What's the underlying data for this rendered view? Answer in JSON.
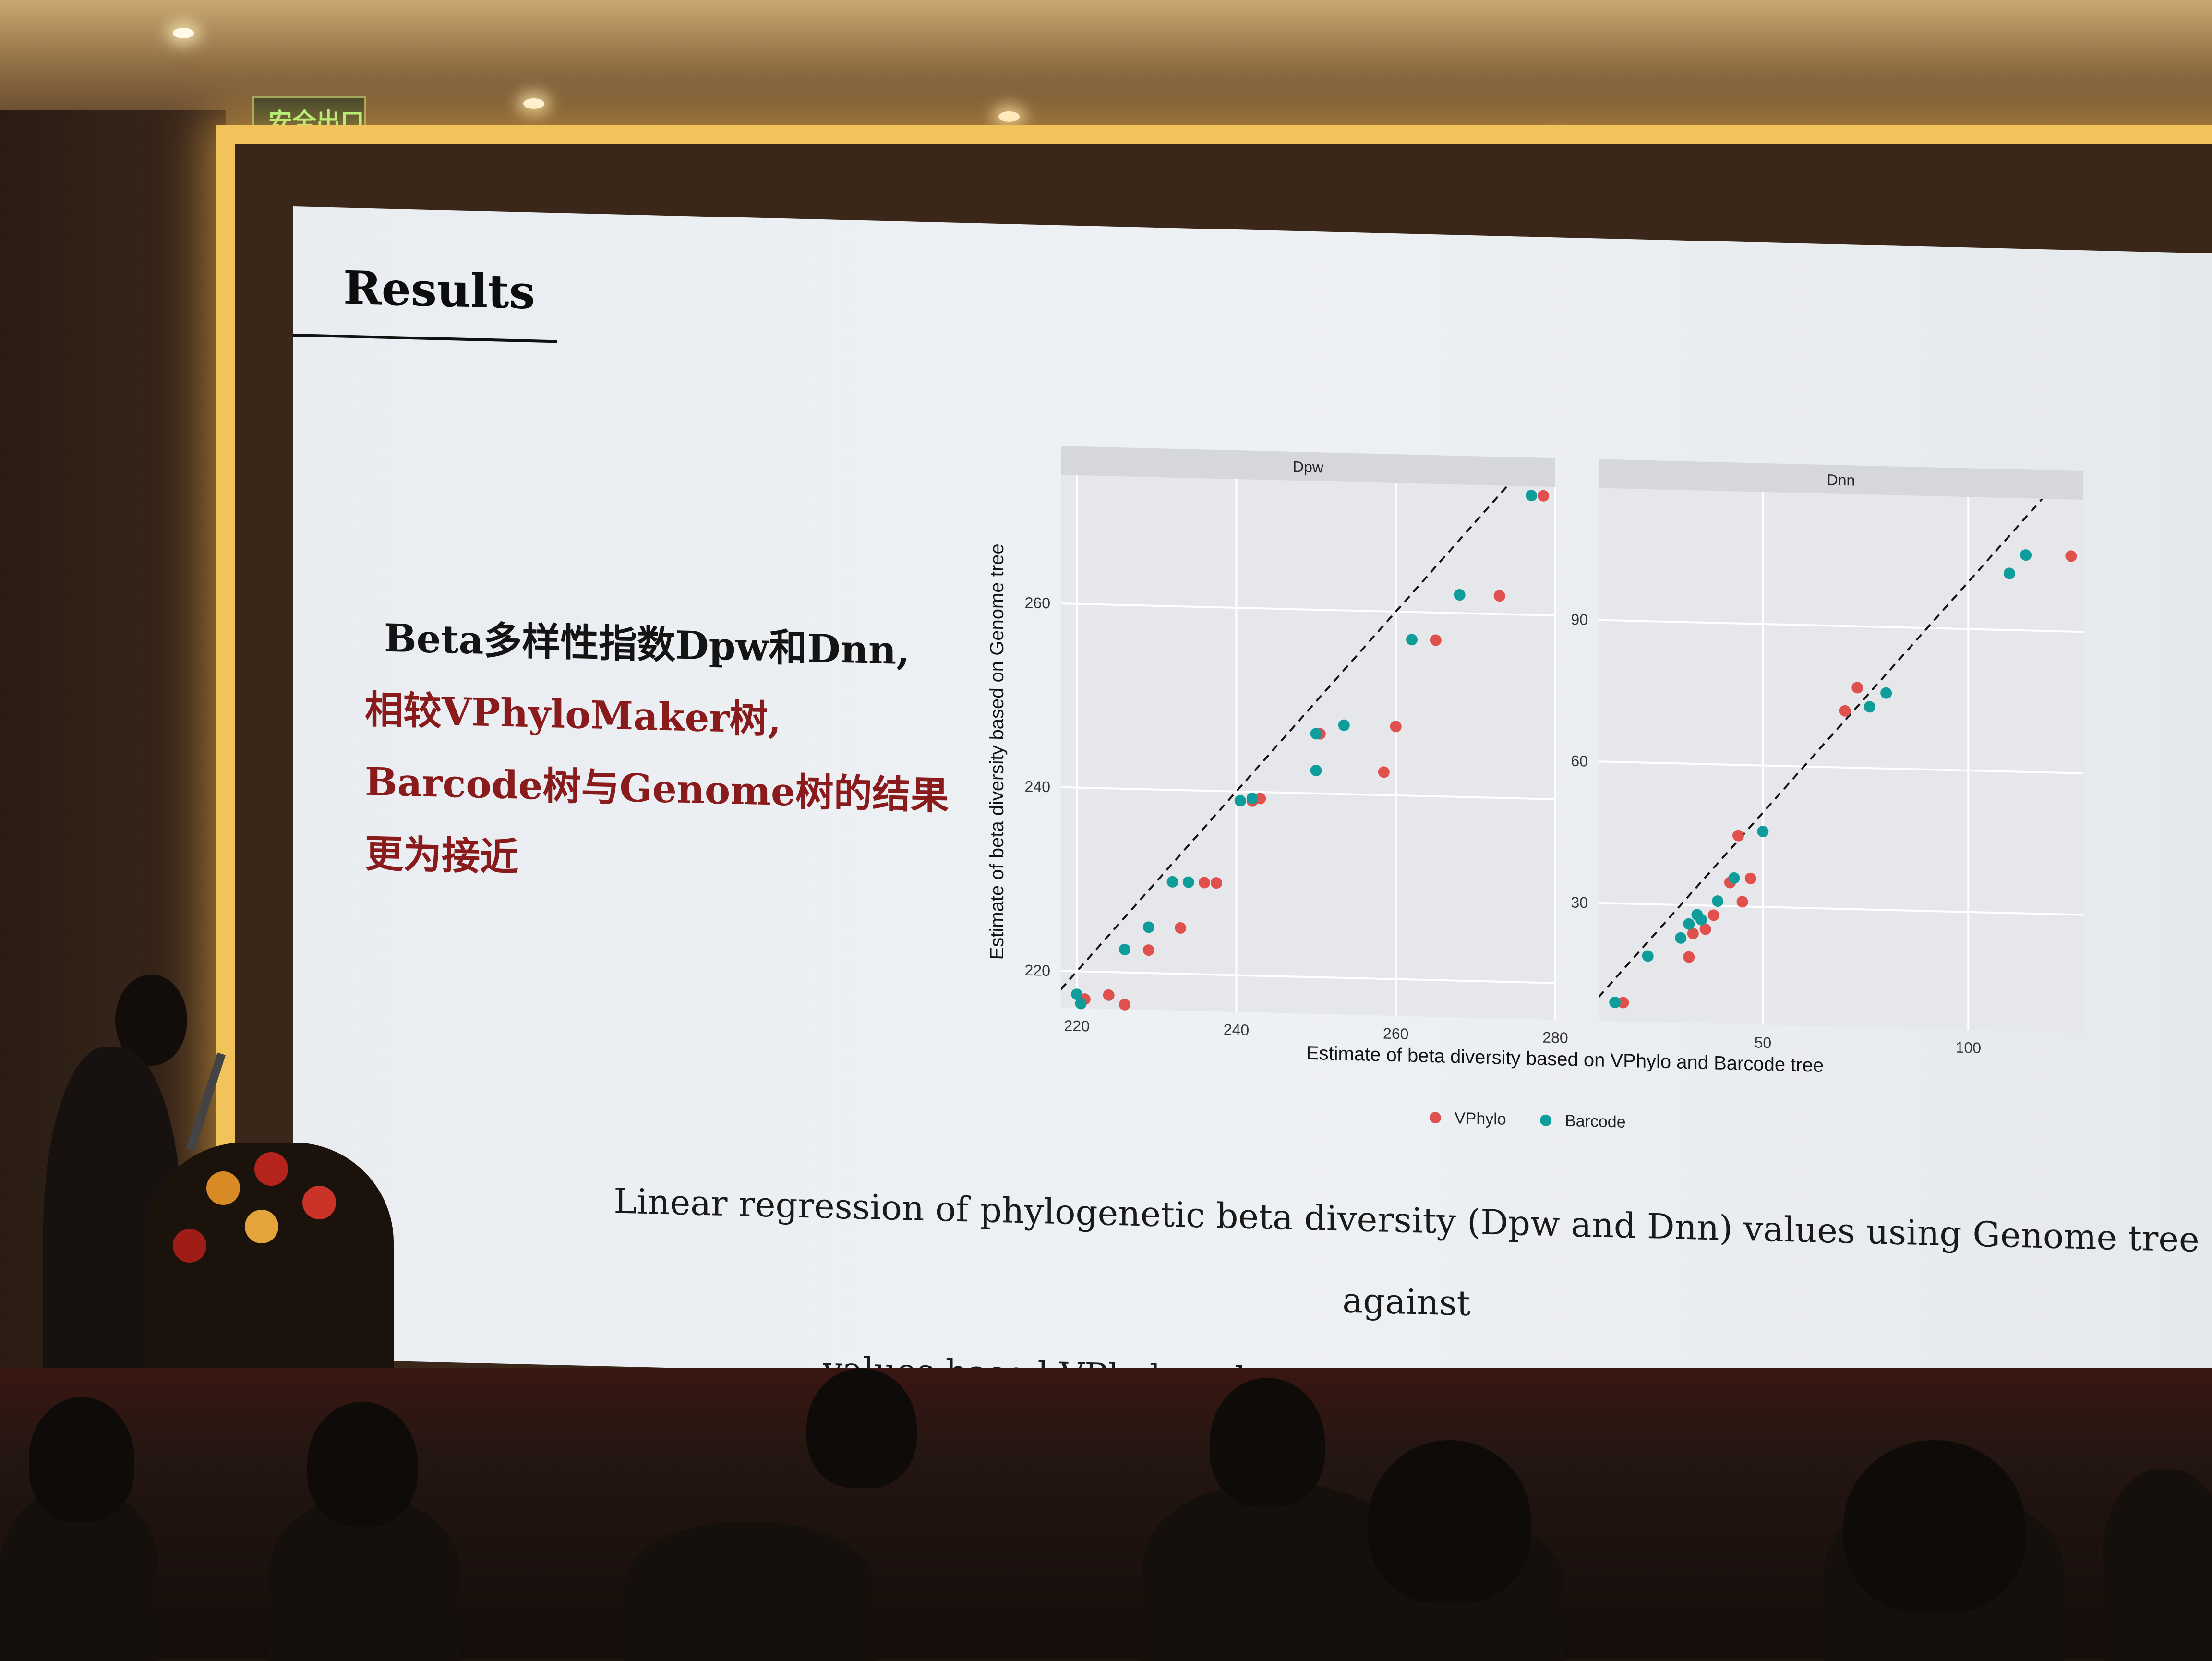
{
  "slide": {
    "title": "Results",
    "chinese_lines": [
      "Beta多样性指数Dpw和Dnn,",
      "相较VPhyloMaker树,",
      "Barcode树与Genome树的结果",
      "更为接近"
    ],
    "caption_lines": [
      "Linear regression of phylogenetic beta diversity (Dpw and Dnn) values using Genome tree against",
      "values based VPhylomaker tree (orange) and Barcode tree (green)"
    ]
  },
  "exit_sign": "安全出口",
  "chart_data": {
    "type": "scatter",
    "xlabel": "Estimate of beta diversity based on VPhylo and Barcode tree",
    "ylabel": "Estimate of beta diversity based on Genome tree",
    "legend": {
      "placement": "bottom",
      "entries": [
        "VPhylo",
        "Barcode"
      ]
    },
    "colors": {
      "VPhylo": "#e0514d",
      "Barcode": "#0e9d9a",
      "panel_bg": "#e6e7eb",
      "strip_bg": "#d6d7da"
    },
    "grid": true,
    "panels": [
      {
        "title": "Dpw",
        "xlim": [
          218,
          280
        ],
        "ylim": [
          216,
          274
        ],
        "xticks": [
          220,
          240,
          260,
          280
        ],
        "yticks": [
          220,
          240,
          260
        ],
        "reference_line": "y = x",
        "series": [
          {
            "name": "VPhylo",
            "x": [
              221,
              224,
              226,
              229,
              233,
              236,
              237.5,
              242,
              243,
              250.5,
              258.5,
              260,
              265,
              273,
              278.5
            ],
            "y": [
              217,
              217.5,
              216.5,
              222.5,
              225,
              230,
              230,
              239,
              239.3,
              246.5,
              242.5,
              247.5,
              257,
              262,
              273
            ]
          },
          {
            "name": "Barcode",
            "x": [
              220,
              220.5,
              226,
              229,
              232,
              234,
              240.5,
              242,
              250,
              250,
              253.5,
              262,
              268,
              277
            ],
            "y": [
              217.5,
              216.5,
              222.5,
              225,
              230,
              230,
              239,
              239.3,
              246.5,
              242.5,
              247.5,
              257,
              262,
              273
            ]
          }
        ]
      },
      {
        "title": "Dnn",
        "xlim": [
          10,
          128
        ],
        "ylim": [
          5,
          118
        ],
        "xticks": [
          50,
          100
        ],
        "yticks": [
          30,
          60,
          90
        ],
        "reference_line": "y = x",
        "series": [
          {
            "name": "VPhylo",
            "x": [
              16,
              32,
              33,
              35,
              36,
              38,
              42,
              44,
              45,
              47,
              70,
              73,
              125,
              110
            ],
            "y": [
              9,
              19,
              24,
              27,
              25,
              28,
              35,
              45,
              31,
              36,
              72,
              77,
              106,
              102
            ]
          },
          {
            "name": "Barcode",
            "x": [
              14,
              22,
              30,
              32,
              34,
              35,
              39,
              43,
              50,
              76,
              80,
              114,
              110
            ],
            "y": [
              9,
              19,
              23,
              26,
              28,
              27,
              31,
              36,
              46,
              73,
              76,
              106,
              102
            ]
          }
        ]
      }
    ]
  }
}
